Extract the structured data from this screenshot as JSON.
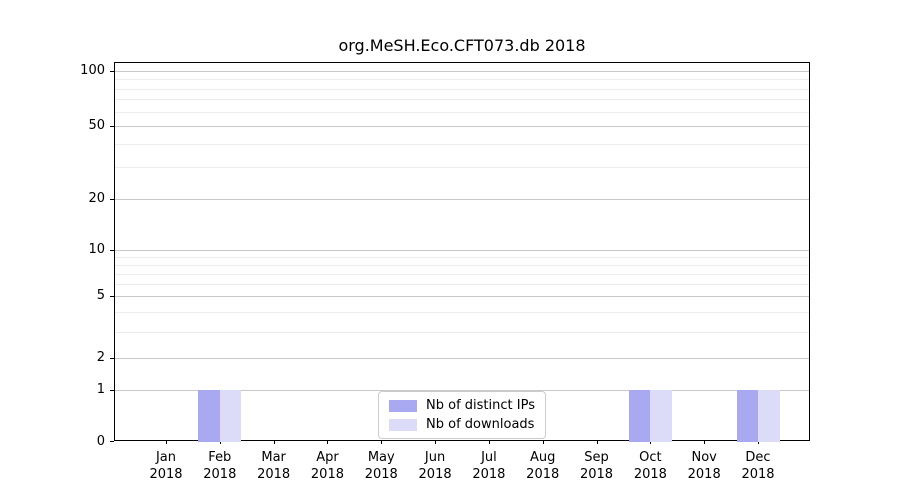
{
  "chart_data": {
    "type": "bar",
    "title": "org.MeSH.Eco.CFT073.db 2018",
    "categories": [
      "Jan",
      "Feb",
      "Mar",
      "Apr",
      "May",
      "Jun",
      "Jul",
      "Aug",
      "Sep",
      "Oct",
      "Nov",
      "Dec"
    ],
    "x_year_label": "2018",
    "series": [
      {
        "name": "Nb of distinct IPs",
        "color": "#a9a9f2",
        "values": [
          0,
          1,
          0,
          0,
          0,
          0,
          0,
          0,
          0,
          1,
          0,
          1
        ]
      },
      {
        "name": "Nb of downloads",
        "color": "#dcdcf8",
        "values": [
          0,
          1,
          0,
          0,
          0,
          0,
          0,
          0,
          0,
          1,
          0,
          1
        ]
      }
    ],
    "yscale": "log1p",
    "ylim": [
      0,
      100
    ],
    "y_ticks": [
      0,
      1,
      2,
      5,
      10,
      20,
      50,
      100
    ],
    "y_minor_gridlines": [
      3,
      4,
      6,
      7,
      8,
      9,
      30,
      40,
      60,
      70,
      80,
      90
    ],
    "xlabel": "",
    "ylabel": "",
    "grid": "horizontal",
    "legend_position": "lower center"
  },
  "colors": {
    "bar_distinct_ips": "#a9a9f2",
    "bar_downloads": "#dcdcf8",
    "major_grid": "#c9c9c9",
    "minor_grid": "#ececec",
    "spine": "#000000",
    "background": "#ffffff"
  }
}
